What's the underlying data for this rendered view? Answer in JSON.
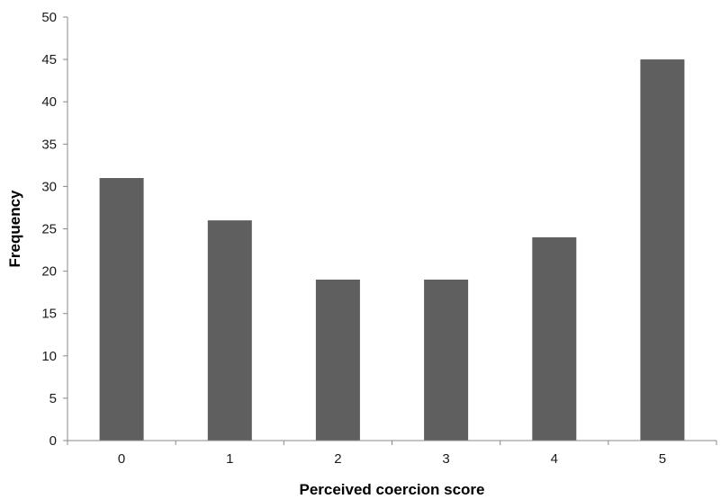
{
  "chart_data": {
    "type": "bar",
    "title": "",
    "xlabel": "Perceived coercion score",
    "ylabel": "Frequency",
    "categories": [
      "0",
      "1",
      "2",
      "3",
      "4",
      "5"
    ],
    "values": [
      31,
      26,
      19,
      19,
      24,
      45
    ],
    "ylim": [
      0,
      50
    ],
    "yticks": [
      0,
      5,
      10,
      15,
      20,
      25,
      30,
      35,
      40,
      45,
      50
    ],
    "grid": false,
    "legend": "none",
    "bar_color": "#5f5f5f",
    "axis_color": "#888888"
  }
}
